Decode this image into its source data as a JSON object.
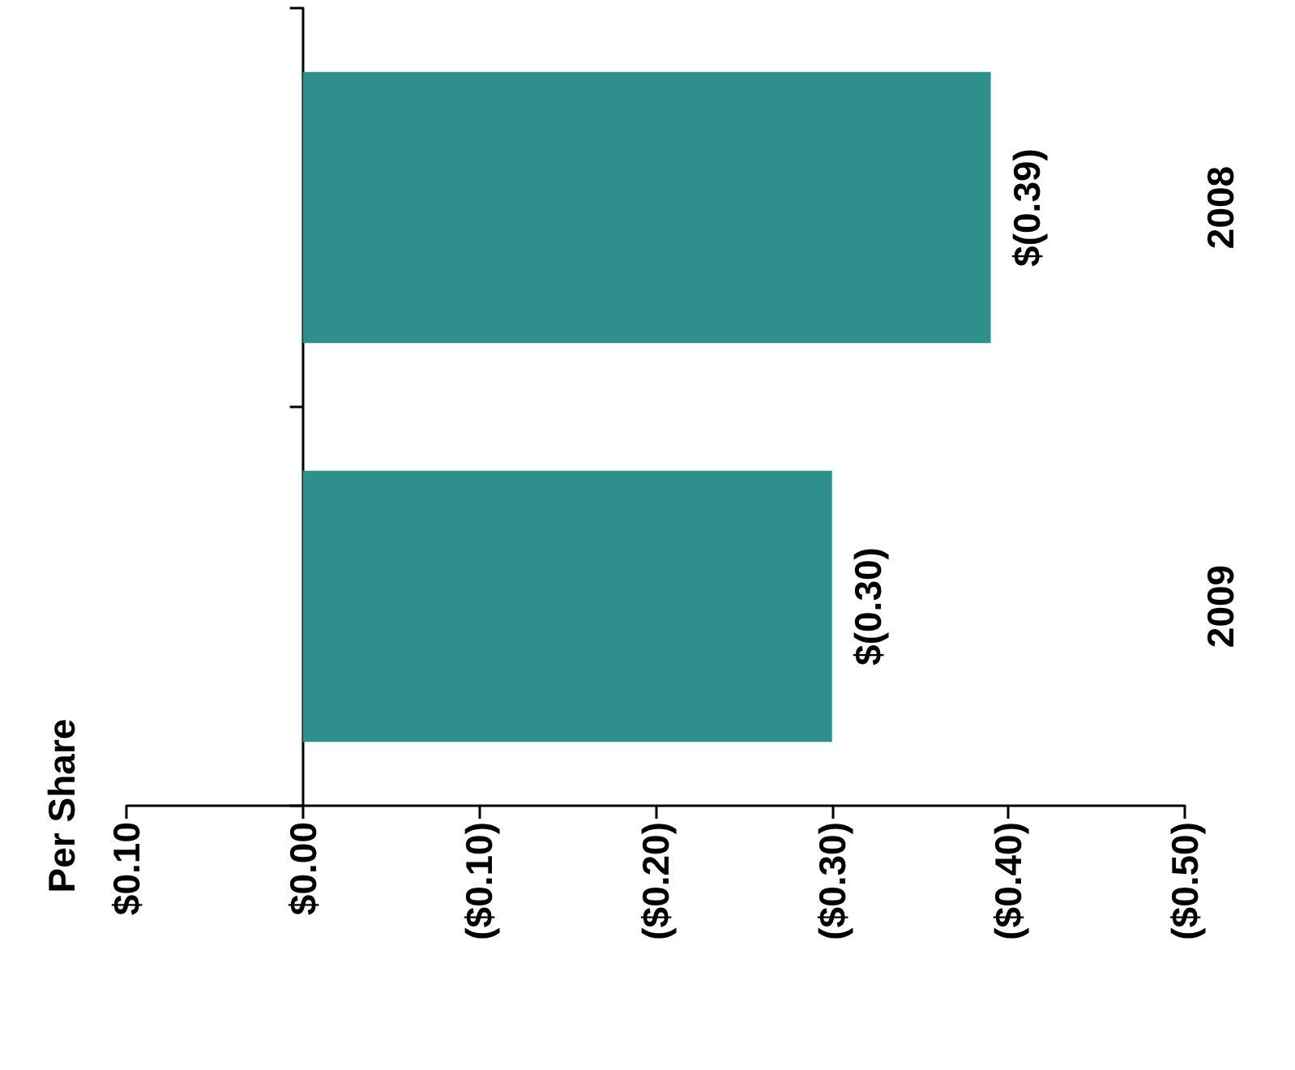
{
  "chart_data": {
    "type": "bar",
    "orientation": "horizontal",
    "ylabel": "Per Share",
    "categories": [
      "2008",
      "2009"
    ],
    "values": [
      -0.39,
      -0.3
    ],
    "value_labels": [
      "$(0.39)",
      "$(0.30)"
    ],
    "color": "#2e8f8c",
    "xlim": [
      0.1,
      -0.5
    ],
    "xticks": [
      {
        "value": 0.1,
        "label": "$0.10"
      },
      {
        "value": 0,
        "label": "$0.00"
      },
      {
        "value": -0.1,
        "label": "($0.10)"
      },
      {
        "value": -0.2,
        "label": "($0.20)"
      },
      {
        "value": -0.3,
        "label": "($0.30)"
      },
      {
        "value": -0.4,
        "label": "($0.40)"
      },
      {
        "value": -0.5,
        "label": "($0.50)"
      }
    ],
    "tick_labels": "x"
  }
}
